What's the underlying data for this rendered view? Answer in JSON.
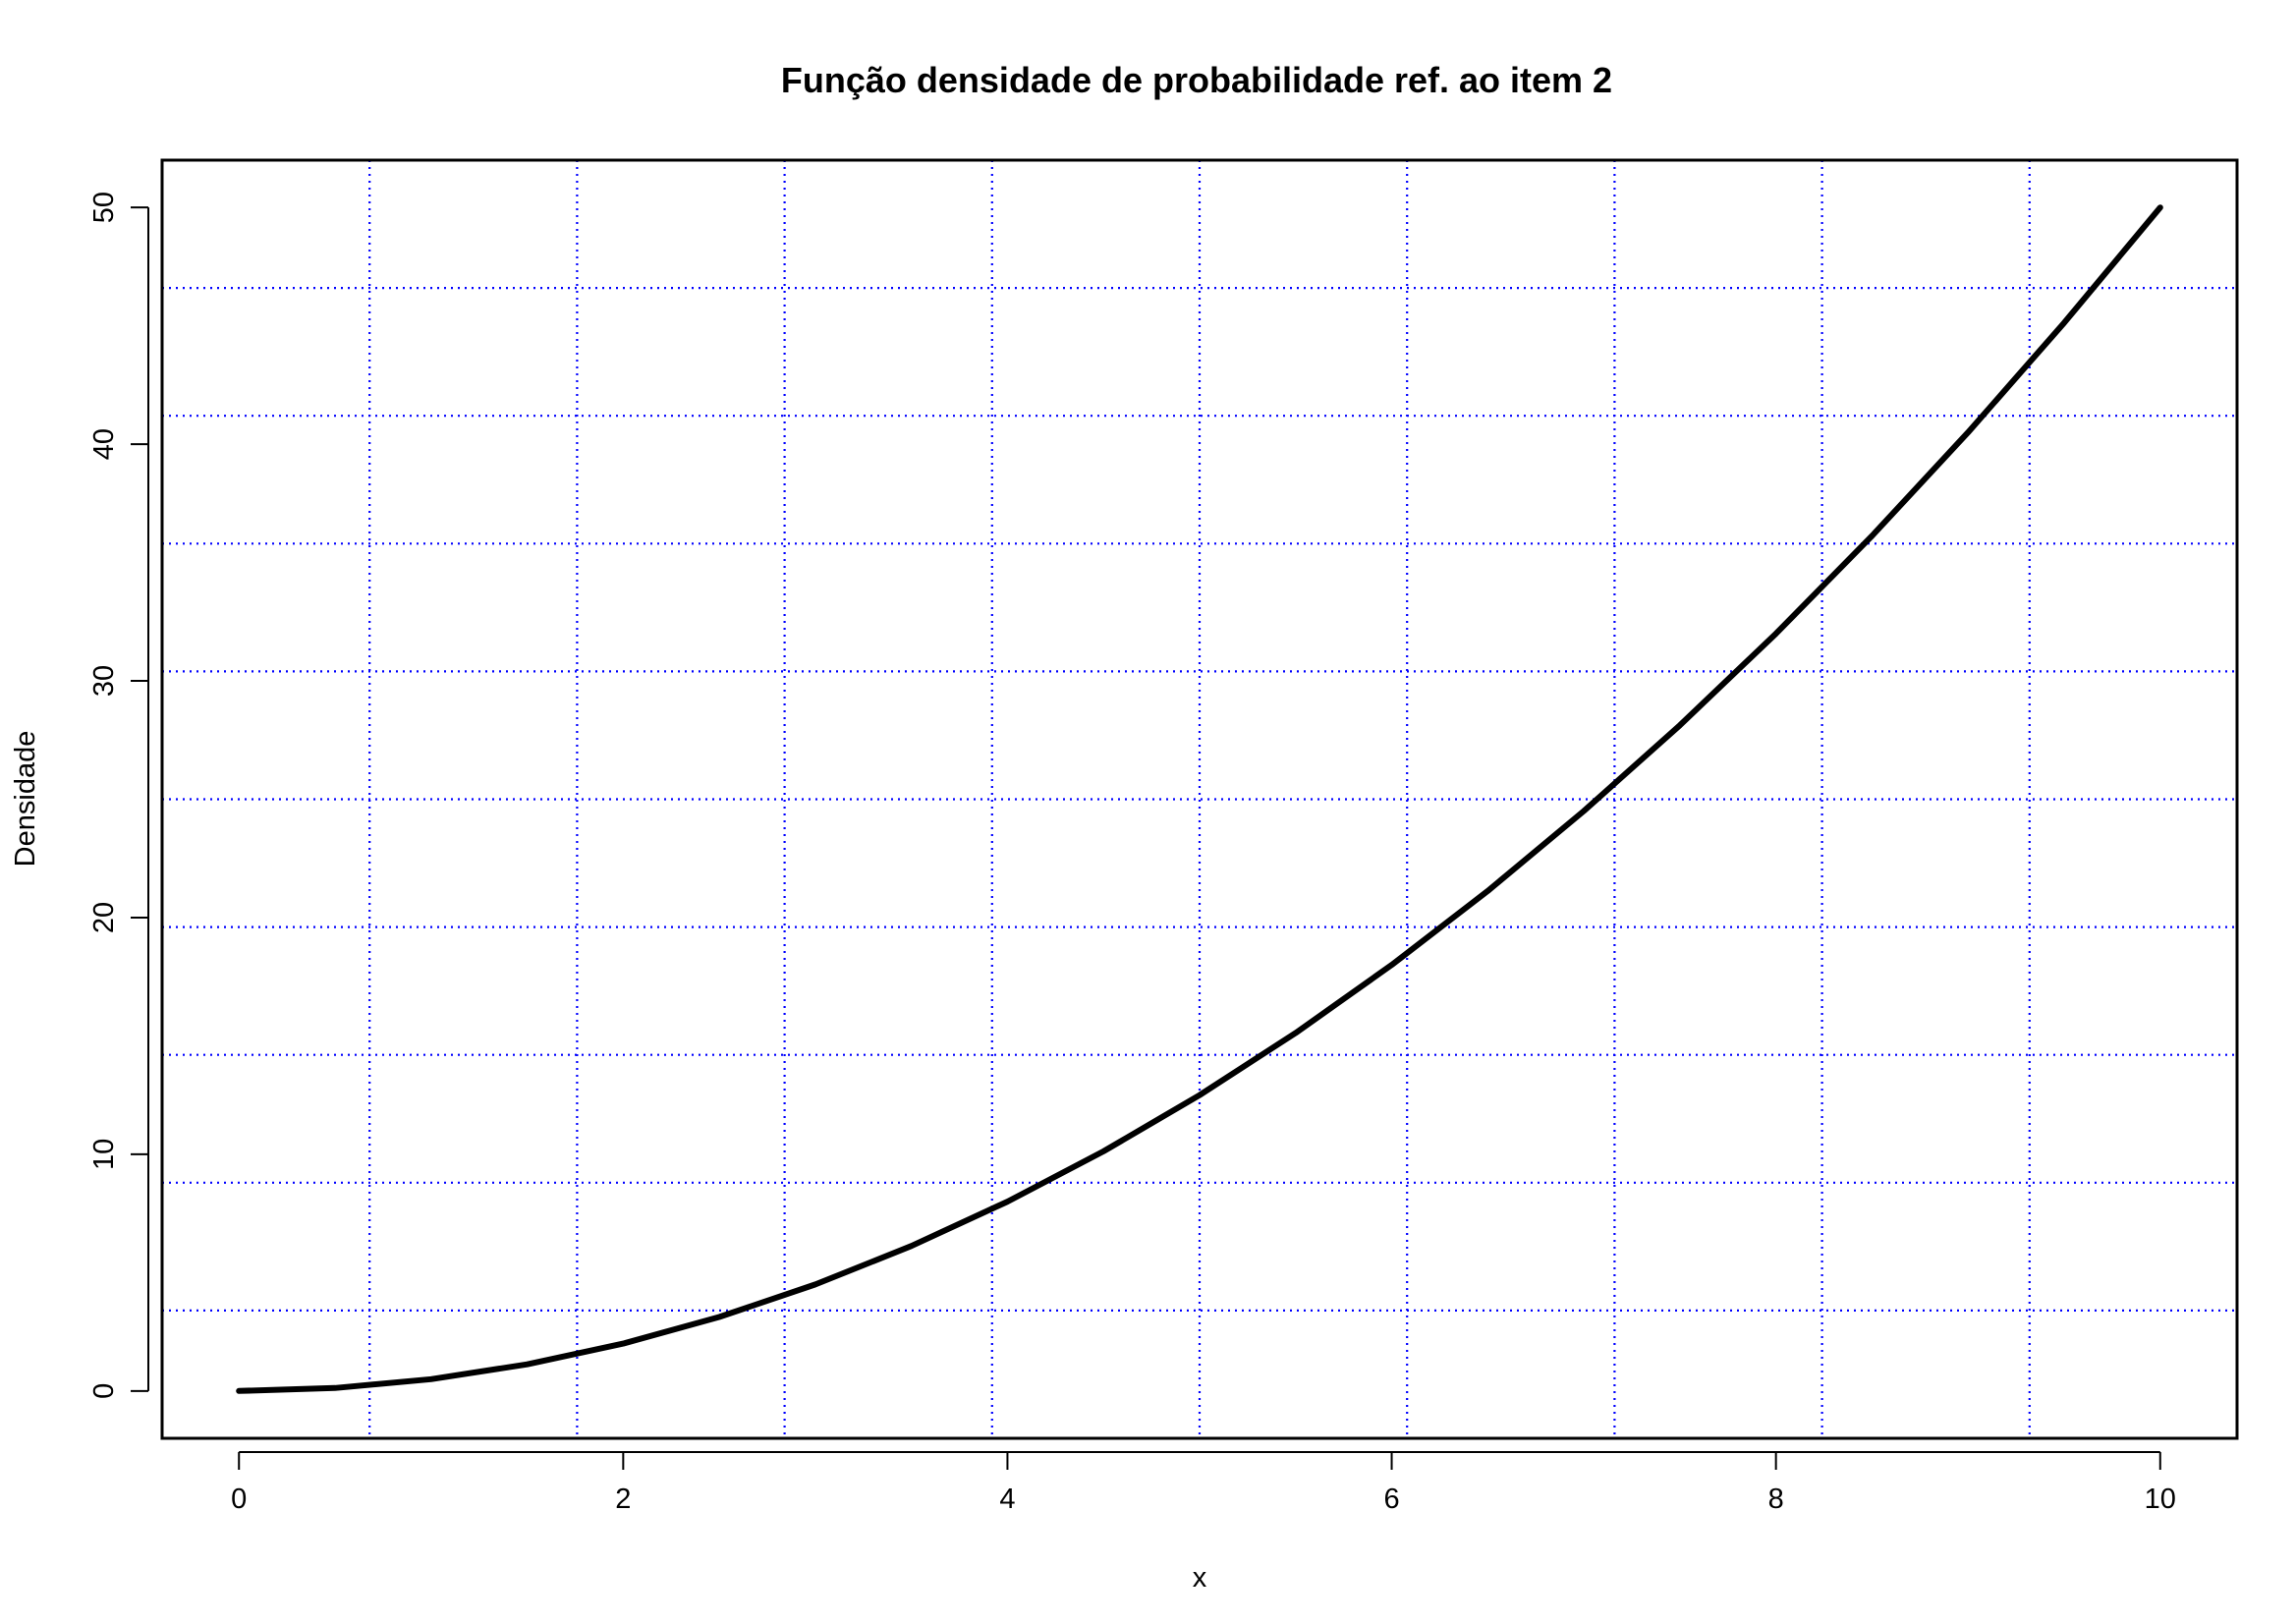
{
  "chart_data": {
    "type": "line",
    "title": "Função densidade de probabilidade ref. ao item 2",
    "xlabel": "x",
    "ylabel": "Densidade",
    "xlim": [
      -0.4,
      10.4
    ],
    "ylim": [
      -2,
      52
    ],
    "x_ticks": [
      0,
      2,
      4,
      6,
      8,
      10
    ],
    "y_ticks": [
      0,
      10,
      20,
      30,
      40,
      50
    ],
    "x_tick_labels": [
      "0",
      "2",
      "4",
      "6",
      "8",
      "10"
    ],
    "y_tick_labels": [
      "0",
      "10",
      "20",
      "30",
      "40",
      "50"
    ],
    "grid": true,
    "grid_style": "dotted",
    "grid_color": "#0000ff",
    "grid_x": [
      0.68,
      1.76,
      2.84,
      3.92,
      5.0,
      6.08,
      7.16,
      8.24,
      9.32
    ],
    "grid_y": [
      3.4,
      8.8,
      14.2,
      19.6,
      25.0,
      30.4,
      35.8,
      41.2,
      46.6
    ],
    "line_color": "#000000",
    "series": [
      {
        "x": [
          0,
          0.5,
          1,
          1.5,
          2,
          2.5,
          3,
          3.5,
          4,
          4.5,
          5,
          5.5,
          6,
          6.5,
          7,
          7.5,
          8,
          8.5,
          9,
          9.5,
          10
        ],
        "values": [
          0,
          0.125,
          0.5,
          1.125,
          2,
          3.125,
          4.5,
          6.125,
          8,
          10.125,
          12.5,
          15.125,
          18,
          21.125,
          24.5,
          28.125,
          32,
          36.125,
          40.5,
          45.125,
          50
        ]
      }
    ]
  }
}
